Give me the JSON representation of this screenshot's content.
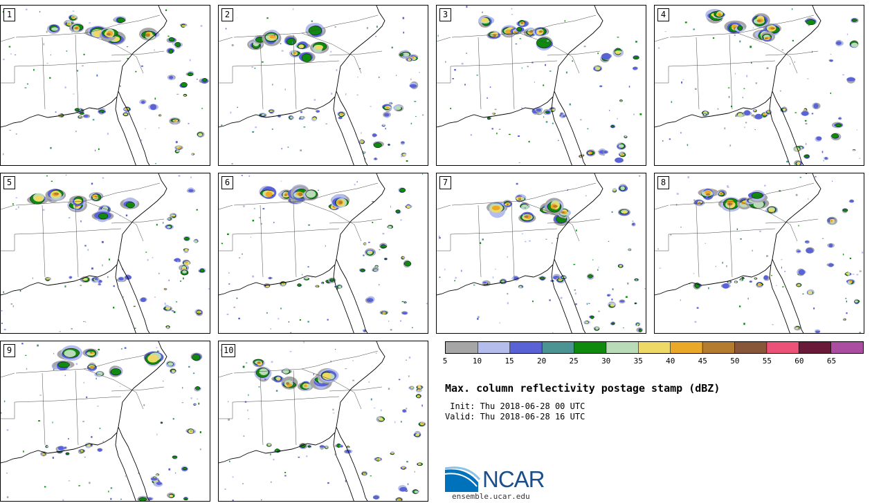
{
  "panels": [
    {
      "label": "1"
    },
    {
      "label": "2"
    },
    {
      "label": "3"
    },
    {
      "label": "4"
    },
    {
      "label": "5"
    },
    {
      "label": "6"
    },
    {
      "label": "7"
    },
    {
      "label": "8"
    },
    {
      "label": "9"
    },
    {
      "label": "10"
    }
  ],
  "colorbar": {
    "unit": "dBZ",
    "bins": [
      {
        "from": 5,
        "to": 10,
        "color": "#a6a6a6"
      },
      {
        "from": 10,
        "to": 15,
        "color": "#b4bdeb"
      },
      {
        "from": 15,
        "to": 20,
        "color": "#5a63d6"
      },
      {
        "from": 20,
        "to": 25,
        "color": "#4c9394"
      },
      {
        "from": 25,
        "to": 30,
        "color": "#0f8a0f"
      },
      {
        "from": 30,
        "to": 35,
        "color": "#b9dbb7"
      },
      {
        "from": 35,
        "to": 40,
        "color": "#efd966"
      },
      {
        "from": 40,
        "to": 45,
        "color": "#eaa928"
      },
      {
        "from": 45,
        "to": 50,
        "color": "#b47c2e"
      },
      {
        "from": 50,
        "to": 55,
        "color": "#88573a"
      },
      {
        "from": 55,
        "to": 60,
        "color": "#ec5178"
      },
      {
        "from": 60,
        "to": 65,
        "color": "#6a1a38"
      },
      {
        "from": 65,
        "to": 70,
        "color": "#ab4ea2"
      }
    ],
    "tick_labels": [
      "5",
      "10",
      "15",
      "20",
      "25",
      "30",
      "35",
      "40",
      "45",
      "50",
      "55",
      "60",
      "65"
    ]
  },
  "title": "Max. column reflectivity postage stamp (dBZ)",
  "init": " Init: Thu 2018-06-28 00 UTC",
  "valid": "Valid: Thu 2018-06-28 16 UTC",
  "logo": {
    "text": "NCAR",
    "primary_color": "#1c4f8a",
    "accent_color": "#0072bc"
  },
  "site": "ensemble.ucar.edu"
}
